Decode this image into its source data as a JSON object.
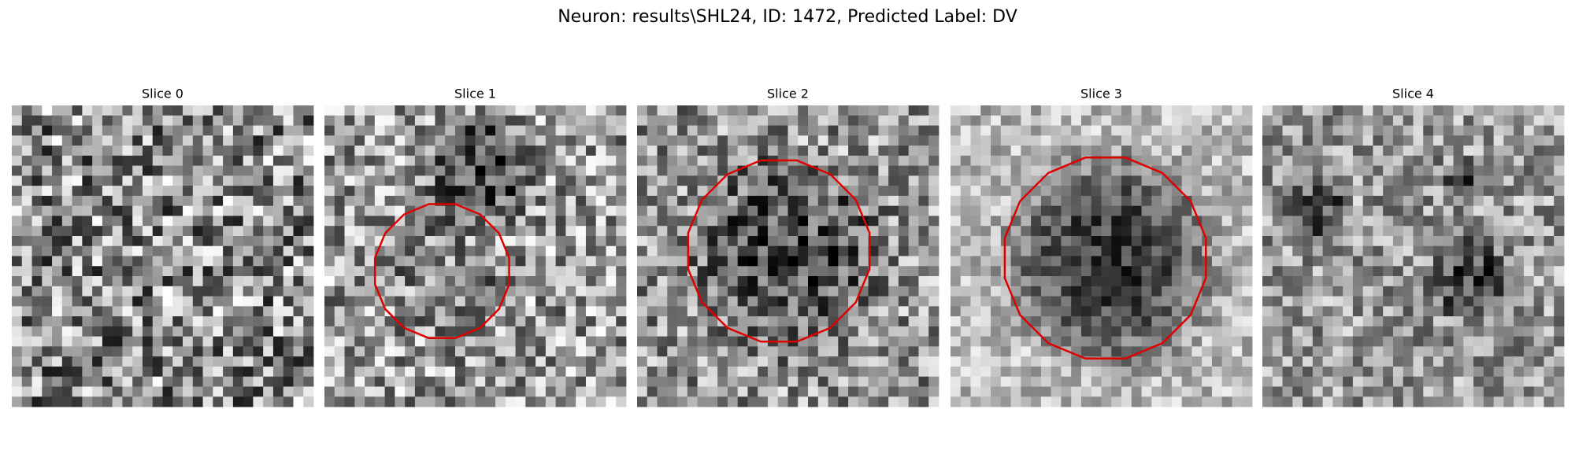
{
  "title": "Neuron: results\\SHL24, ID: 1472, Predicted Label: DV",
  "panels": [
    {
      "title": "Slice 0"
    },
    {
      "title": "Slice 1"
    },
    {
      "title": "Slice 2"
    },
    {
      "title": "Slice 3"
    },
    {
      "title": "Slice 4"
    }
  ]
}
